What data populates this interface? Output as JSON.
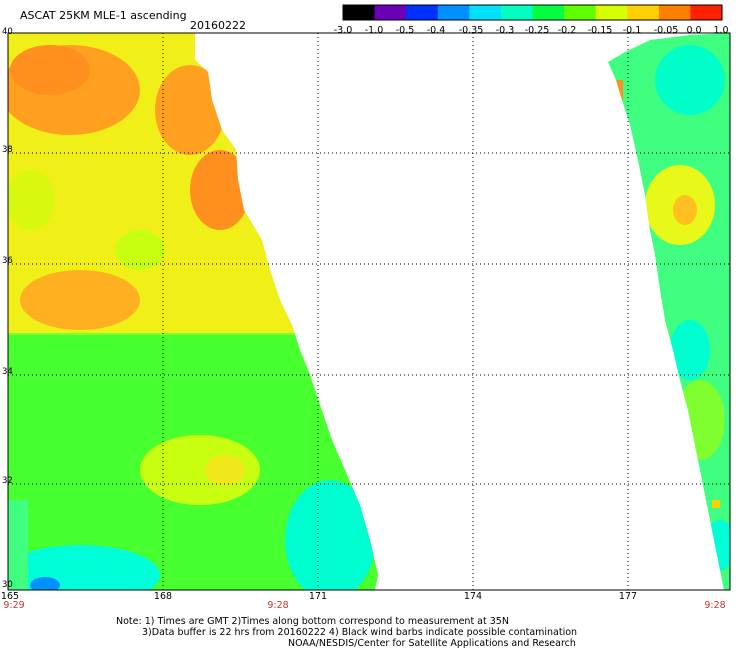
{
  "header": {
    "title": "ASCAT 25KM MLE-1 ascending",
    "date": "20160222"
  },
  "colorbar": {
    "labels": [
      "-3.0",
      "-1.0",
      "-0.5",
      "-0.4",
      "-0.35",
      "-0.3",
      "-0.25",
      "-0.2",
      "-0.15",
      "-0.1",
      "-0.05",
      "0.0",
      "1.0"
    ],
    "colors": [
      "#000000",
      "#6a00b8",
      "#0030ff",
      "#0090ff",
      "#00e0ff",
      "#00ffc0",
      "#00ff40",
      "#60ff00",
      "#d8ff00",
      "#ffd000",
      "#ff8000",
      "#ff2000"
    ]
  },
  "axes": {
    "lat_labels": [
      "40",
      "38",
      "36",
      "34",
      "32",
      "30"
    ],
    "lon_labels": [
      "165",
      "168",
      "171",
      "174",
      "177"
    ],
    "time_labels": [
      "9:29",
      "9:28",
      "9:28"
    ]
  },
  "notes": {
    "line1": "Note: 1) Times are GMT 2)Times along bottom correspond to measurement at 35N",
    "line2": "3)Data buffer is 22 hrs from 20160222 4) Black wind barbs indicate possible contamination",
    "line3": "NOAA/NESDIS/Center for Satellite Applications and Research"
  }
}
